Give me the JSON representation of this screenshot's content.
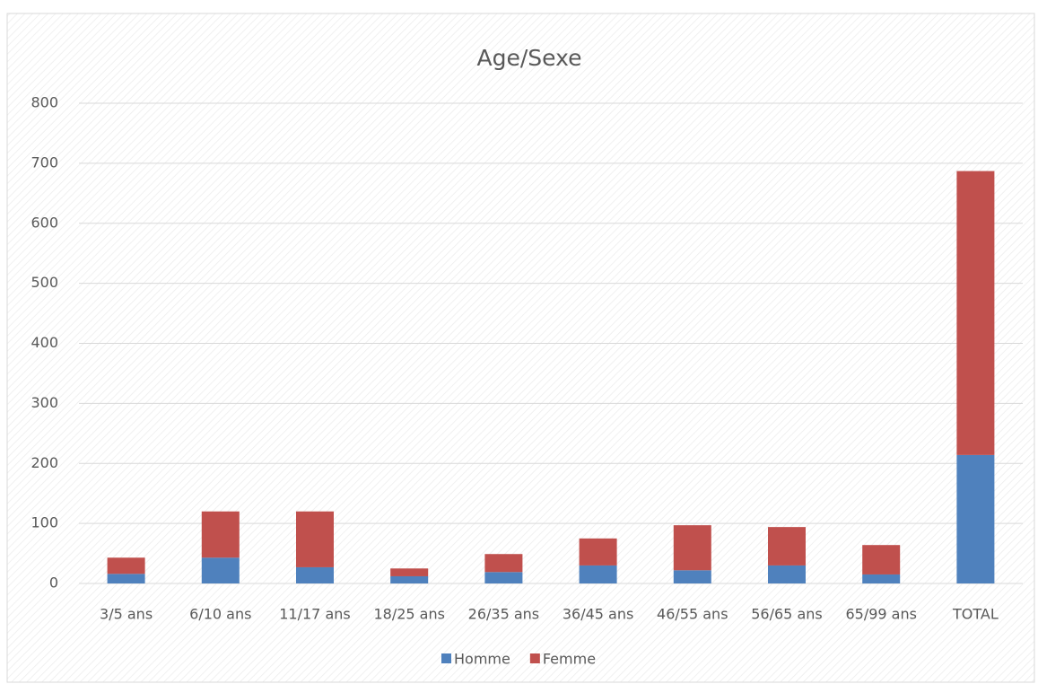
{
  "chart_data": {
    "type": "stacked_bar",
    "title": "Age/Sexe",
    "categories": [
      "3/5 ans",
      "6/10 ans",
      "11/17 ans",
      "18/25 ans",
      "26/35 ans",
      "36/45 ans",
      "46/55 ans",
      "56/65 ans",
      "65/99 ans",
      "TOTAL"
    ],
    "series": [
      {
        "name": "Homme",
        "color": "#4f81bd",
        "values": [
          16,
          43,
          27,
          12,
          19,
          30,
          22,
          30,
          15,
          214
        ]
      },
      {
        "name": "Femme",
        "color": "#c0504d",
        "values": [
          27,
          77,
          93,
          13,
          30,
          45,
          75,
          64,
          49,
          473
        ]
      }
    ],
    "ylim": [
      0,
      800
    ],
    "yticks": [
      0,
      100,
      200,
      300,
      400,
      500,
      600,
      700,
      800
    ],
    "grid": true,
    "legend": "bottom"
  }
}
